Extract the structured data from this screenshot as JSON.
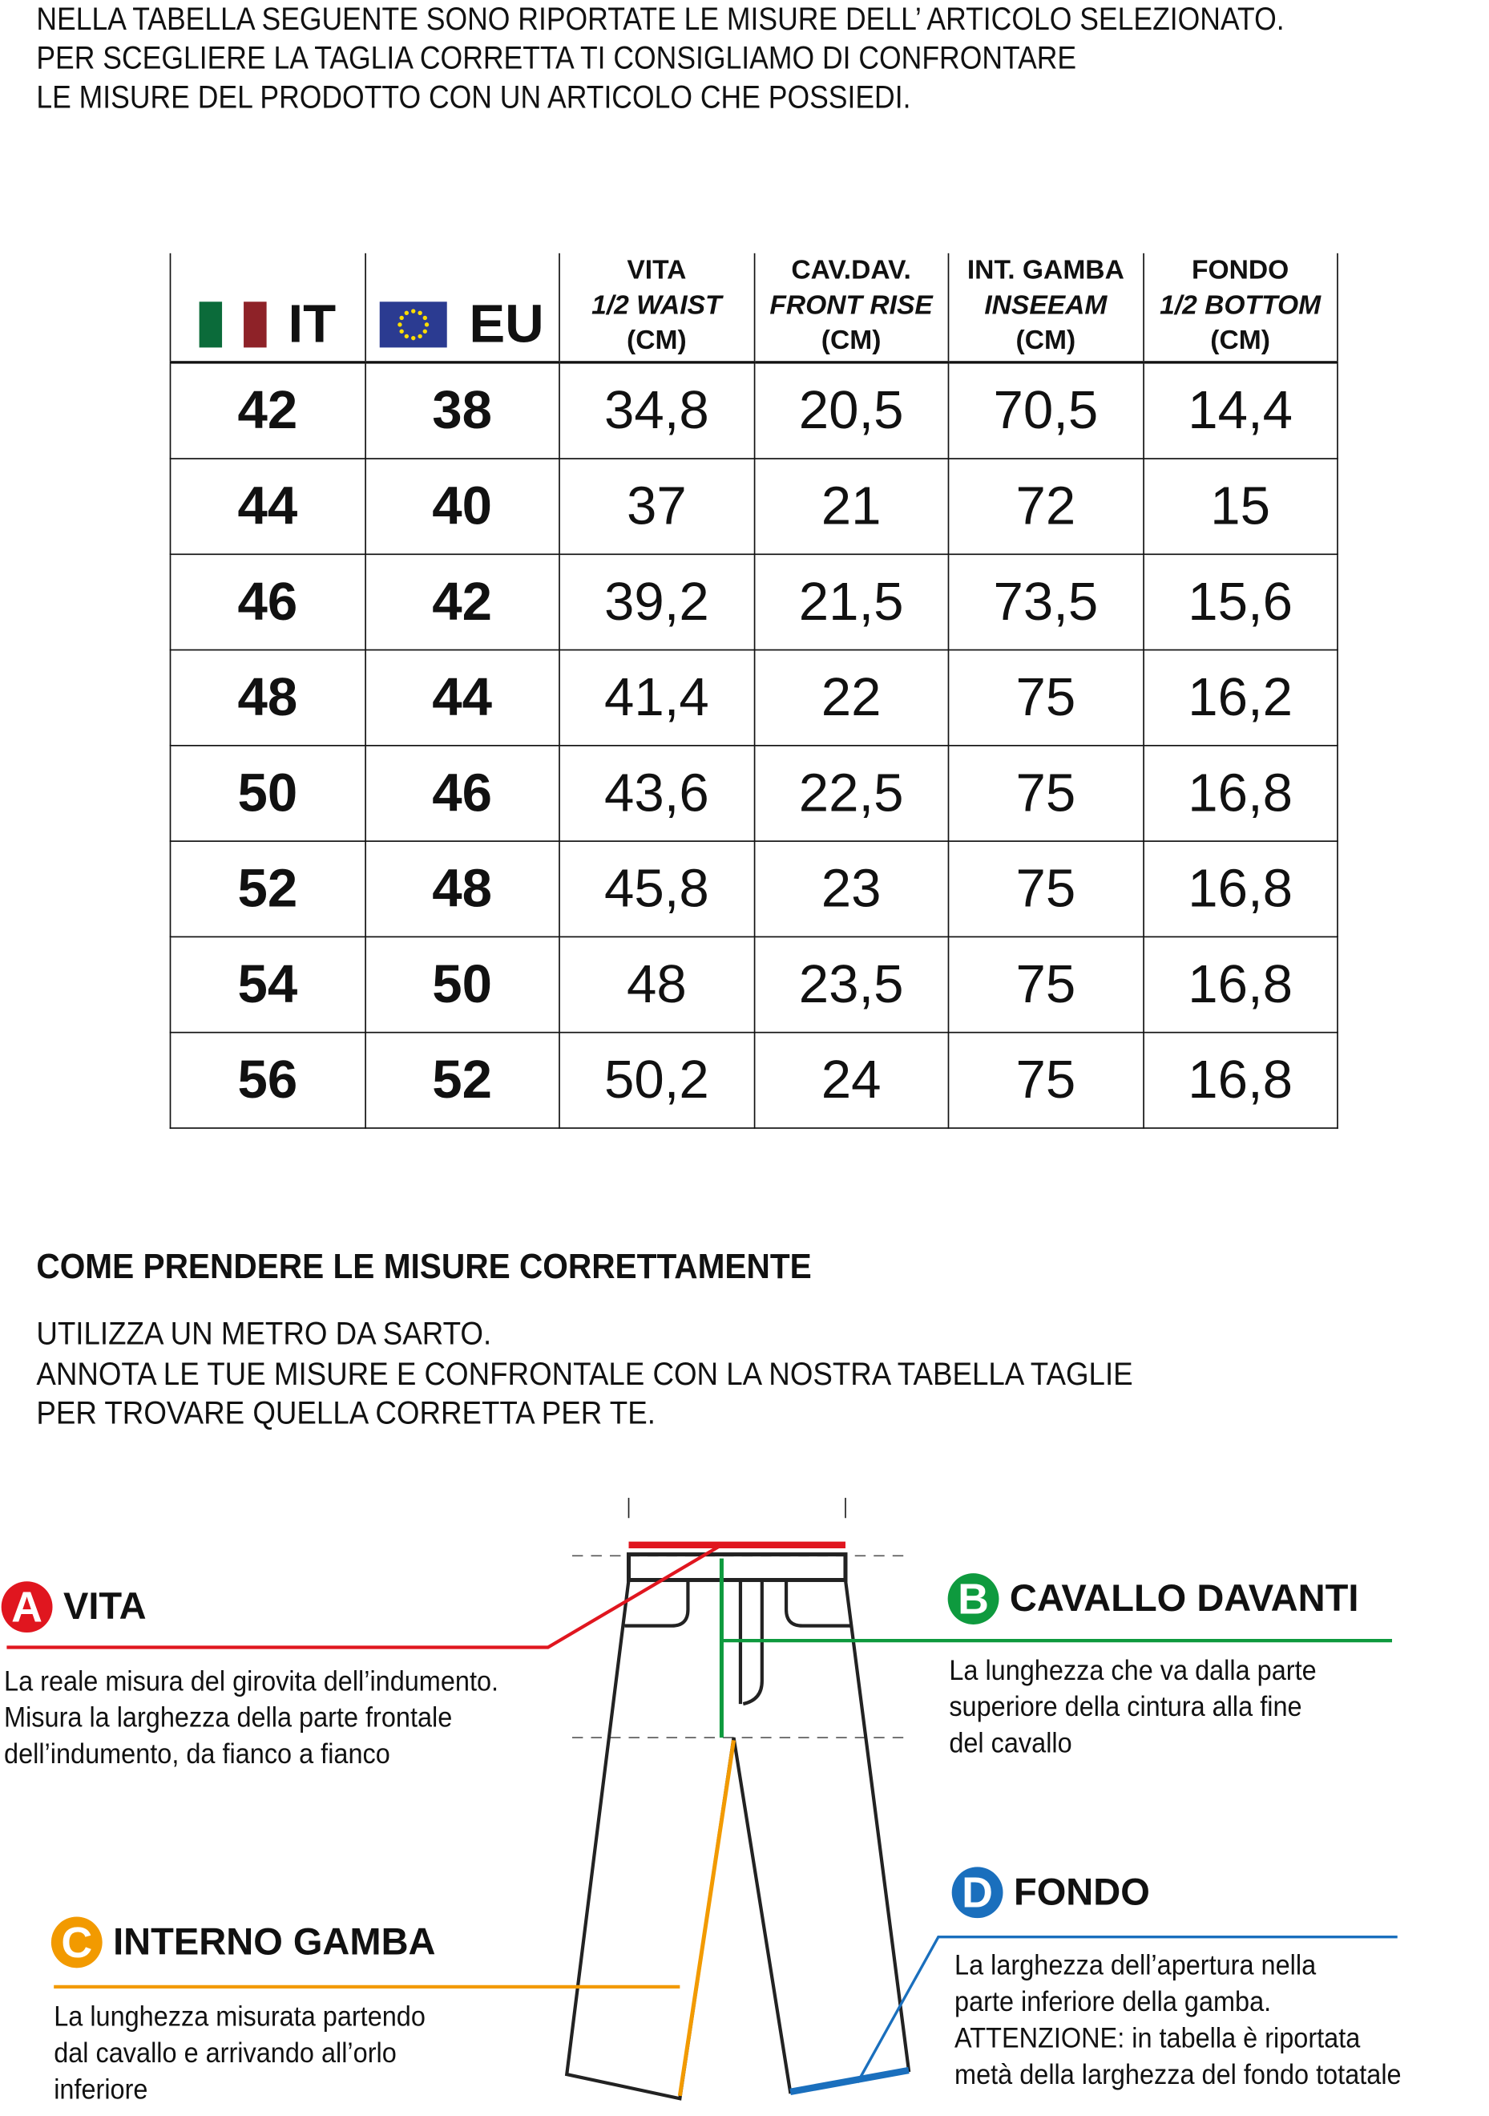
{
  "intro": [
    "NELLA TABELLA SEGUENTE SONO RIPORTATE LE MISURE DELL’ ARTICOLO SELEZIONATO.",
    "PER SCEGLIERE LA TAGLIA CORRETTA TI CONSIGLIAMO DI CONFRONTARE",
    "LE MISURE DEL PRODOTTO CON UN ARTICOLO CHE POSSIEDI."
  ],
  "table": {
    "headers": [
      {
        "label": "IT",
        "icon": "italy-flag-icon"
      },
      {
        "label": "EU",
        "icon": "eu-flag-icon"
      },
      {
        "line1": "VITA",
        "line2": "1/2 WAIST",
        "line3": "(CM)"
      },
      {
        "line1": "CAV.DAV.",
        "line2": "FRONT RISE",
        "line3": "(CM)"
      },
      {
        "line1": "INT. GAMBA",
        "line2": "INSEEAM",
        "line3": "(CM)"
      },
      {
        "line1": "FONDO",
        "line2": "1/2 BOTTOM",
        "line3": "(CM)"
      }
    ],
    "rows": [
      [
        "42",
        "38",
        "34,8",
        "20,5",
        "70,5",
        "14,4"
      ],
      [
        "44",
        "40",
        "37",
        "21",
        "72",
        "15"
      ],
      [
        "46",
        "42",
        "39,2",
        "21,5",
        "73,5",
        "15,6"
      ],
      [
        "48",
        "44",
        "41,4",
        "22",
        "75",
        "16,2"
      ],
      [
        "50",
        "46",
        "43,6",
        "22,5",
        "75",
        "16,8"
      ],
      [
        "52",
        "48",
        "45,8",
        "23",
        "75",
        "16,8"
      ],
      [
        "54",
        "50",
        "48",
        "23,5",
        "75",
        "16,8"
      ],
      [
        "56",
        "52",
        "50,2",
        "24",
        "75",
        "16,8"
      ]
    ]
  },
  "how_to": {
    "heading": "COME PRENDERE LE MISURE CORRETTAMENTE",
    "lines": [
      "UTILIZZA UN METRO DA SARTO.",
      "ANNOTA LE TUE MISURE E CONFRONTALE CON LA NOSTRA TABELLA TAGLIE",
      "PER TROVARE QUELLA CORRETTA PER TE."
    ]
  },
  "measures": {
    "a": {
      "letter": "A",
      "title": "VITA",
      "color": "#e0161f",
      "desc": [
        "La reale misura del girovita dell’indumento.",
        "Misura la larghezza della parte frontale",
        "dell’indumento, da fianco a fianco"
      ]
    },
    "b": {
      "letter": "B",
      "title": "CAVALLO DAVANTI",
      "color": "#0e9a3e",
      "desc": [
        "La lunghezza che va dalla parte",
        "superiore della cintura alla fine",
        "del cavallo"
      ]
    },
    "c": {
      "letter": "C",
      "title": "INTERNO GAMBA",
      "color": "#f29a00",
      "desc": [
        "La lunghezza misurata partendo",
        "dal cavallo e arrivando all’orlo",
        "inferiore"
      ]
    },
    "d": {
      "letter": "D",
      "title": "FONDO",
      "color": "#1a6fbd",
      "desc": [
        "La larghezza dell’apertura nella",
        "parte inferiore della gamba.",
        "ATTENZIONE: in tabella è riportata",
        "metà della larghezza del fondo totatale"
      ]
    }
  }
}
